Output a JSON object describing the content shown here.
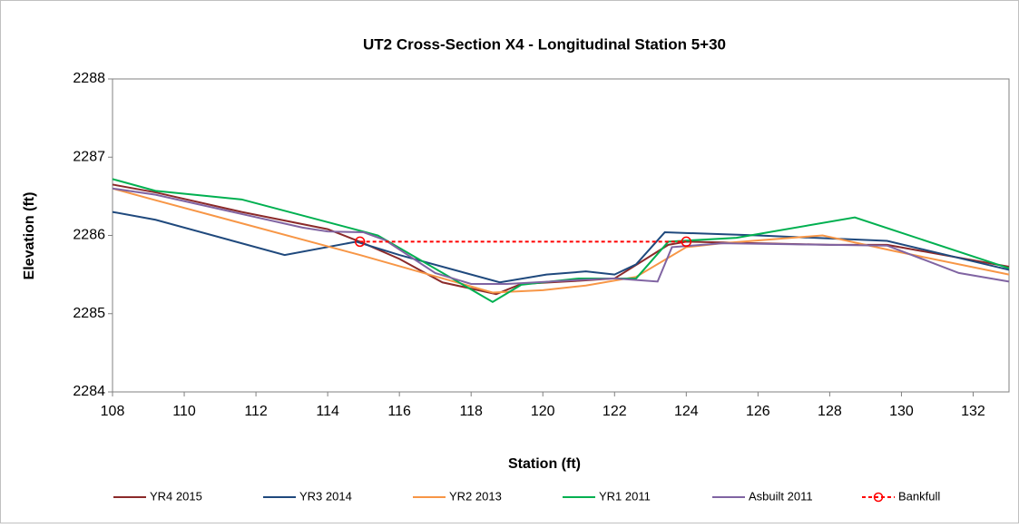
{
  "chart_data": {
    "type": "line",
    "title": "UT2 Cross-Section X4 - Longitudinal Station 5+30",
    "x_label": "Station (ft)",
    "y_label": "Elevation (ft)",
    "xlim": [
      108,
      133
    ],
    "xticks": [
      108,
      110,
      112,
      114,
      116,
      118,
      120,
      122,
      124,
      126,
      128,
      130,
      132
    ],
    "ylim": [
      2284,
      2288
    ],
    "yticks": [
      2284,
      2285,
      2286,
      2287,
      2288
    ],
    "legend": "bottom",
    "series": [
      {
        "name": "YR4 2015",
        "color": "#8B2A2A",
        "x": [
          108,
          109.2,
          111.6,
          114,
          114.9,
          116,
          117.2,
          118.7,
          119.4,
          121,
          122,
          123.5,
          124,
          126,
          128,
          129.6,
          133
        ],
        "values": [
          2286.65,
          2286.55,
          2286.3,
          2286.08,
          2285.92,
          2285.7,
          2285.4,
          2285.25,
          2285.38,
          2285.42,
          2285.45,
          2285.88,
          2285.92,
          2285.9,
          2285.88,
          2285.88,
          2285.6
        ]
      },
      {
        "name": "YR3 2014",
        "color": "#1F497D",
        "x": [
          108,
          109.2,
          112.8,
          114.8,
          116,
          118.8,
          120.1,
          121.2,
          122,
          122.6,
          123.4,
          126,
          129.6,
          133
        ],
        "values": [
          2286.3,
          2286.2,
          2285.75,
          2285.92,
          2285.75,
          2285.4,
          2285.5,
          2285.54,
          2285.5,
          2285.63,
          2286.04,
          2286,
          2285.93,
          2285.56
        ]
      },
      {
        "name": "YR2 2013",
        "color": "#F79646",
        "x": [
          108,
          109.2,
          114.9,
          118.6,
          120,
          121.2,
          122.6,
          124,
          125,
          127.8,
          129.8,
          133
        ],
        "values": [
          2286.6,
          2286.45,
          2285.75,
          2285.27,
          2285.3,
          2285.36,
          2285.47,
          2285.85,
          2285.9,
          2286,
          2285.8,
          2285.5
        ]
      },
      {
        "name": "YR1 2011",
        "color": "#00B050",
        "x": [
          108,
          109.2,
          111.6,
          115.4,
          118.6,
          119.4,
          121,
          122.6,
          123.5,
          125.4,
          128.7,
          133
        ],
        "values": [
          2286.72,
          2286.57,
          2286.46,
          2286,
          2285.15,
          2285.37,
          2285.45,
          2285.45,
          2285.92,
          2285.97,
          2286.23,
          2285.58
        ]
      },
      {
        "name": "Asbuilt 2011",
        "color": "#8064A2",
        "x": [
          108,
          109.2,
          113.3,
          114,
          115,
          115.6,
          117,
          118,
          119,
          121,
          122,
          123.2,
          123.6,
          125,
          129.6,
          131.6,
          133
        ],
        "values": [
          2286.6,
          2286.52,
          2286.1,
          2286.05,
          2286.04,
          2285.94,
          2285.52,
          2285.38,
          2285.38,
          2285.43,
          2285.45,
          2285.41,
          2285.85,
          2285.9,
          2285.87,
          2285.52,
          2285.41
        ]
      },
      {
        "name": "Bankfull",
        "color": "#FF0000",
        "dashed": true,
        "marker": "circle",
        "x": [
          114.9,
          124
        ],
        "values": [
          2285.92,
          2285.92
        ]
      }
    ]
  }
}
